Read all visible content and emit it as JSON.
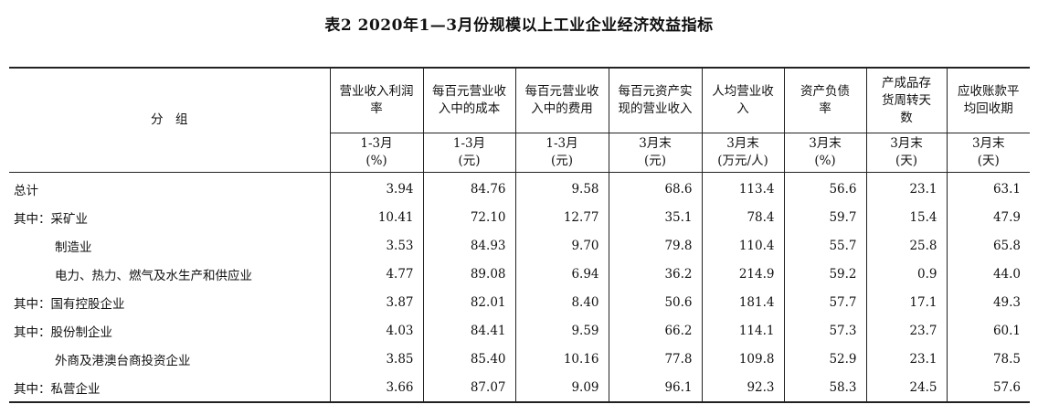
{
  "title": "表2  2020年1—3月份规模以上工业企业经济效益指标",
  "group_header": "分　组",
  "columns": [
    {
      "name": "营业收入利润率",
      "unit": "1-3月\n(%)"
    },
    {
      "name": "每百元营业收入中的成本",
      "unit": "1-3月\n(元)"
    },
    {
      "name": "每百元营业收入中的费用",
      "unit": "1-3月\n(元)"
    },
    {
      "name": "每百元资产实现的营业收入",
      "unit": "3月末\n(元)"
    },
    {
      "name": "人均营业收入",
      "unit": "3月末\n(万元/人)"
    },
    {
      "name": "资产负债率",
      "unit": "3月末\n(%)"
    },
    {
      "name": "产成品存货周转天数",
      "unit": "3月末\n(天)"
    },
    {
      "name": "应收账款平均回收期",
      "unit": "3月末\n(天)"
    }
  ],
  "rows": [
    {
      "label": "总计",
      "indent": false,
      "values": [
        "3.94",
        "84.76",
        "9.58",
        "68.6",
        "113.4",
        "56.6",
        "23.1",
        "63.1"
      ]
    },
    {
      "label": "其中：采矿业",
      "indent": false,
      "values": [
        "10.41",
        "72.10",
        "12.77",
        "35.1",
        "78.4",
        "59.7",
        "15.4",
        "47.9"
      ]
    },
    {
      "label": "制造业",
      "indent": true,
      "values": [
        "3.53",
        "84.93",
        "9.70",
        "79.8",
        "110.4",
        "55.7",
        "25.8",
        "65.8"
      ]
    },
    {
      "label": "电力、热力、燃气及水生产和供应业",
      "indent": true,
      "values": [
        "4.77",
        "89.08",
        "6.94",
        "36.2",
        "214.9",
        "59.2",
        "0.9",
        "44.0"
      ]
    },
    {
      "label": "其中：国有控股企业",
      "indent": false,
      "values": [
        "3.87",
        "82.01",
        "8.40",
        "50.6",
        "181.4",
        "57.7",
        "17.1",
        "49.3"
      ]
    },
    {
      "label": "其中：股份制企业",
      "indent": false,
      "values": [
        "4.03",
        "84.41",
        "9.59",
        "66.2",
        "114.1",
        "57.3",
        "23.7",
        "60.1"
      ]
    },
    {
      "label": "外商及港澳台商投资企业",
      "indent": true,
      "values": [
        "3.85",
        "85.40",
        "10.16",
        "77.8",
        "109.8",
        "52.9",
        "23.1",
        "78.5"
      ]
    },
    {
      "label": "其中：私营企业",
      "indent": false,
      "values": [
        "3.66",
        "87.07",
        "9.09",
        "96.1",
        "92.3",
        "58.3",
        "24.5",
        "57.6"
      ]
    }
  ]
}
